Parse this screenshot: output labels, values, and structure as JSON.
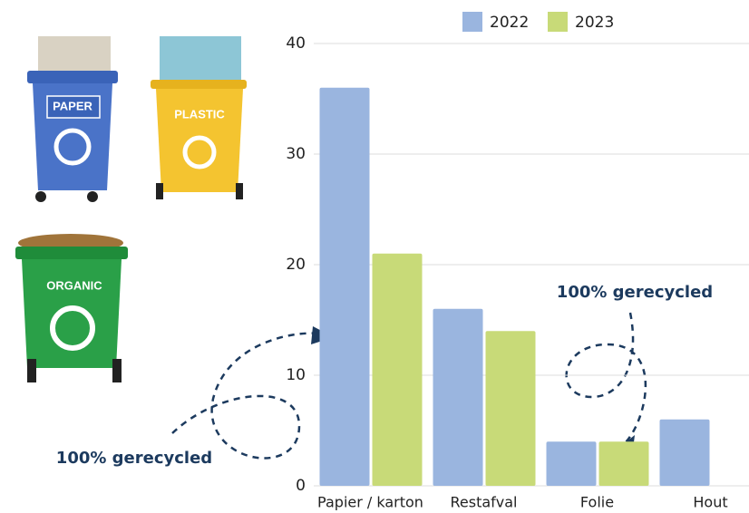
{
  "chart_data": {
    "type": "bar",
    "categories": [
      "Papier / karton",
      "Restafval",
      "Folie",
      "Hout"
    ],
    "series": [
      {
        "name": "2022",
        "color": "#9ab5df",
        "values": [
          36,
          16,
          4,
          6
        ]
      },
      {
        "name": "2023",
        "color": "#c8da78",
        "values": [
          21,
          14,
          4,
          null
        ]
      }
    ],
    "ylim": [
      0,
      40
    ],
    "yticks": [
      0,
      10,
      20,
      30,
      40
    ],
    "grid": true,
    "legend": "top",
    "annotations": [
      "100% gerecycled",
      "100% gerecycled"
    ]
  },
  "bins": [
    "PAPER",
    "PLASTIC",
    "ORGANIC"
  ]
}
